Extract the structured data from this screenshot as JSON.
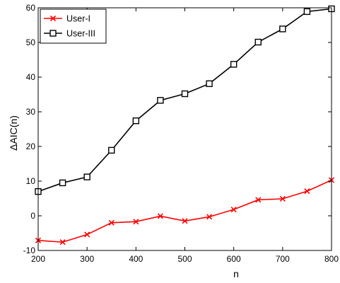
{
  "chart_data": {
    "type": "line",
    "title": "",
    "xlabel": "n",
    "ylabel": "ΔAIC(n)",
    "xlim": [
      200,
      800
    ],
    "ylim": [
      -10,
      60
    ],
    "xticks": [
      200,
      300,
      400,
      500,
      600,
      700,
      800
    ],
    "yticks": [
      -10,
      0,
      10,
      20,
      30,
      40,
      50,
      60
    ],
    "grid": false,
    "legend_position": "top-left",
    "x": [
      200,
      250,
      300,
      350,
      400,
      450,
      500,
      550,
      600,
      650,
      700,
      750,
      800
    ],
    "series": [
      {
        "name": "User-I",
        "color": "#ff0000",
        "marker": "x",
        "values": [
          -7.1,
          -7.6,
          -5.4,
          -2.0,
          -1.7,
          -0.1,
          -1.5,
          -0.3,
          1.8,
          4.6,
          4.9,
          7.1,
          10.3
        ]
      },
      {
        "name": "User-III",
        "color": "#000000",
        "marker": "square",
        "values": [
          7.0,
          9.5,
          11.2,
          18.9,
          27.4,
          33.3,
          35.2,
          38.1,
          43.7,
          50.1,
          53.9,
          58.9,
          59.7
        ]
      }
    ]
  }
}
